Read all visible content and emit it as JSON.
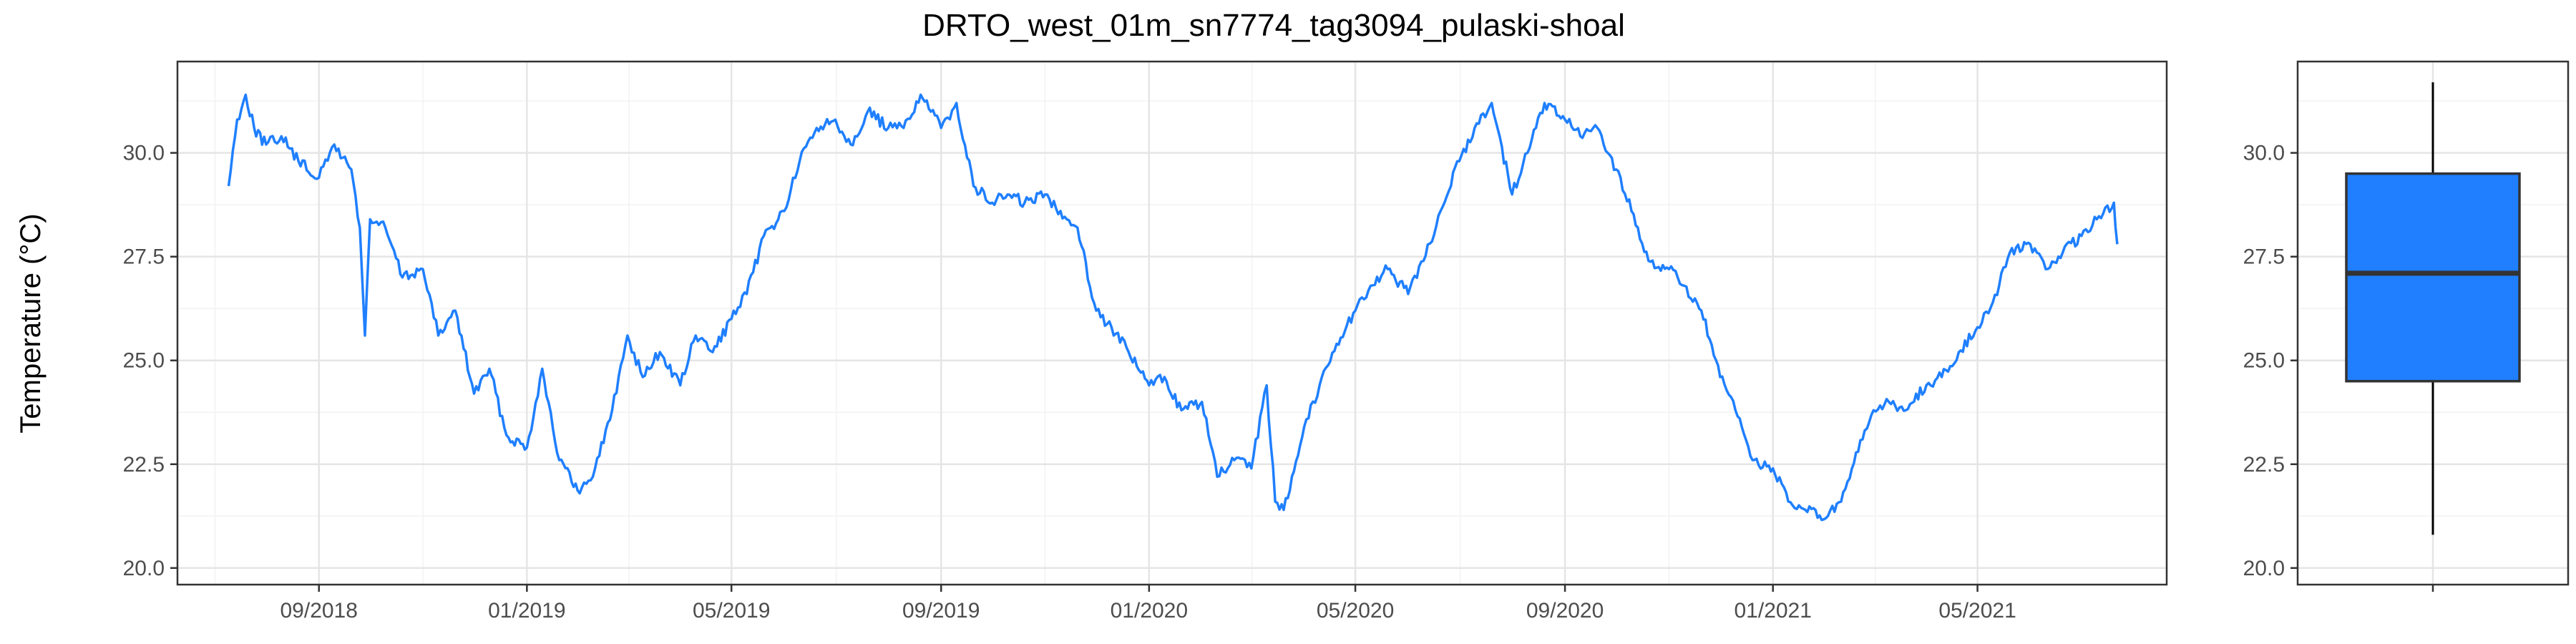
{
  "chart_data": [
    {
      "type": "line",
      "title": "DRTO_west_01m_sn7774_tag3094_pulaski-shoal",
      "ylabel": "Temperature (°C)",
      "xlabel": "",
      "ylim": [
        19.6,
        32.2
      ],
      "xlim": [
        "2018-06-10",
        "2021-08-20"
      ],
      "grid": true,
      "color": "#1f7fff",
      "x_ticks": [
        "2018-09-01",
        "2019-01-01",
        "2019-05-01",
        "2019-09-01",
        "2020-01-01",
        "2020-05-01",
        "2020-09-01",
        "2021-01-01",
        "2021-05-01"
      ],
      "x_tick_labels": [
        "09/2018",
        "01/2019",
        "05/2019",
        "09/2019",
        "01/2020",
        "05/2020",
        "09/2020",
        "01/2021",
        "05/2021"
      ],
      "y_ticks": [
        20.0,
        22.5,
        25.0,
        27.5,
        30.0
      ],
      "y_tick_labels": [
        "20.0",
        "22.5",
        "25.0",
        "27.5",
        "30.0"
      ],
      "series": [
        {
          "x": [
            "2018-07-10",
            "2018-07-15",
            "2018-07-20",
            "2018-07-25",
            "2018-08-01",
            "2018-08-10",
            "2018-08-20",
            "2018-09-01",
            "2018-09-10",
            "2018-09-20",
            "2018-09-25",
            "2018-09-28",
            "2018-10-01",
            "2018-10-10",
            "2018-10-20",
            "2018-11-01",
            "2018-11-10",
            "2018-11-20",
            "2018-12-01",
            "2018-12-10",
            "2018-12-20",
            "2019-01-01",
            "2019-01-10",
            "2019-01-20",
            "2019-02-01",
            "2019-02-10",
            "2019-02-20",
            "2019-03-01",
            "2019-03-10",
            "2019-03-20",
            "2019-04-01",
            "2019-04-10",
            "2019-04-20",
            "2019-05-01",
            "2019-05-10",
            "2019-05-20",
            "2019-06-01",
            "2019-06-10",
            "2019-06-20",
            "2019-07-01",
            "2019-07-10",
            "2019-07-20",
            "2019-08-01",
            "2019-08-10",
            "2019-08-20",
            "2019-09-01",
            "2019-09-10",
            "2019-09-20",
            "2019-10-01",
            "2019-10-10",
            "2019-10-20",
            "2019-11-01",
            "2019-11-10",
            "2019-11-20",
            "2019-12-01",
            "2019-12-10",
            "2019-12-20",
            "2020-01-01",
            "2020-01-10",
            "2020-01-20",
            "2020-02-01",
            "2020-02-10",
            "2020-02-20",
            "2020-03-01",
            "2020-03-10",
            "2020-03-15",
            "2020-03-20",
            "2020-04-01",
            "2020-04-10",
            "2020-04-20",
            "2020-05-01",
            "2020-05-10",
            "2020-05-20",
            "2020-06-01",
            "2020-06-10",
            "2020-06-20",
            "2020-07-01",
            "2020-07-10",
            "2020-07-20",
            "2020-08-01",
            "2020-08-10",
            "2020-08-20",
            "2020-09-01",
            "2020-09-10",
            "2020-09-20",
            "2020-10-01",
            "2020-10-10",
            "2020-10-20",
            "2020-11-01",
            "2020-11-10",
            "2020-11-20",
            "2020-12-01",
            "2020-12-10",
            "2020-12-20",
            "2021-01-01",
            "2021-01-10",
            "2021-01-20",
            "2021-02-01",
            "2021-02-10",
            "2021-02-20",
            "2021-03-01",
            "2021-03-10",
            "2021-03-20",
            "2021-04-01",
            "2021-04-10",
            "2021-04-20",
            "2021-05-01",
            "2021-05-10",
            "2021-05-20",
            "2021-06-01",
            "2021-06-10",
            "2021-06-20",
            "2021-07-01",
            "2021-07-10",
            "2021-07-20",
            "2021-07-22"
          ],
          "y": [
            29.2,
            30.8,
            31.4,
            30.6,
            30.2,
            30.4,
            29.8,
            29.4,
            30.2,
            29.6,
            28.2,
            25.6,
            28.4,
            28.2,
            27.0,
            27.2,
            25.6,
            26.2,
            24.2,
            24.8,
            23.2,
            22.9,
            24.8,
            22.6,
            21.8,
            22.4,
            23.8,
            25.6,
            24.6,
            25.2,
            24.4,
            25.6,
            25.2,
            26.0,
            26.6,
            28.0,
            28.6,
            29.8,
            30.6,
            30.8,
            30.2,
            31.0,
            30.6,
            30.6,
            31.4,
            30.6,
            31.2,
            29.2,
            28.8,
            29.0,
            28.8,
            29.0,
            28.6,
            28.2,
            26.2,
            25.8,
            25.2,
            24.4,
            24.6,
            23.8,
            24.0,
            22.2,
            22.6,
            22.4,
            24.4,
            21.6,
            21.4,
            23.4,
            24.4,
            25.4,
            26.2,
            26.8,
            27.2,
            26.6,
            27.4,
            28.6,
            29.8,
            30.6,
            31.2,
            29.0,
            30.0,
            31.2,
            30.8,
            30.4,
            30.6,
            29.6,
            28.6,
            27.4,
            27.2,
            26.8,
            26.2,
            24.6,
            23.8,
            22.6,
            22.4,
            21.6,
            21.4,
            21.2,
            21.6,
            22.8,
            23.8,
            24.0,
            23.8,
            24.4,
            24.6,
            25.2,
            25.8,
            26.4,
            27.6,
            27.8,
            27.2,
            27.6,
            28.0,
            28.4,
            28.8,
            27.8
          ]
        }
      ]
    },
    {
      "type": "box",
      "title": "",
      "ylabel": "",
      "ylim": [
        19.6,
        32.2
      ],
      "color": "#1f7fff",
      "min": 20.8,
      "q1": 24.5,
      "median": 27.1,
      "q3": 29.5,
      "max": 31.7,
      "y_ticks": [
        20.0,
        22.5,
        25.0,
        27.5,
        30.0
      ],
      "y_tick_labels": [
        "20.0",
        "22.5",
        "25.0",
        "27.5",
        "30.0"
      ]
    }
  ]
}
